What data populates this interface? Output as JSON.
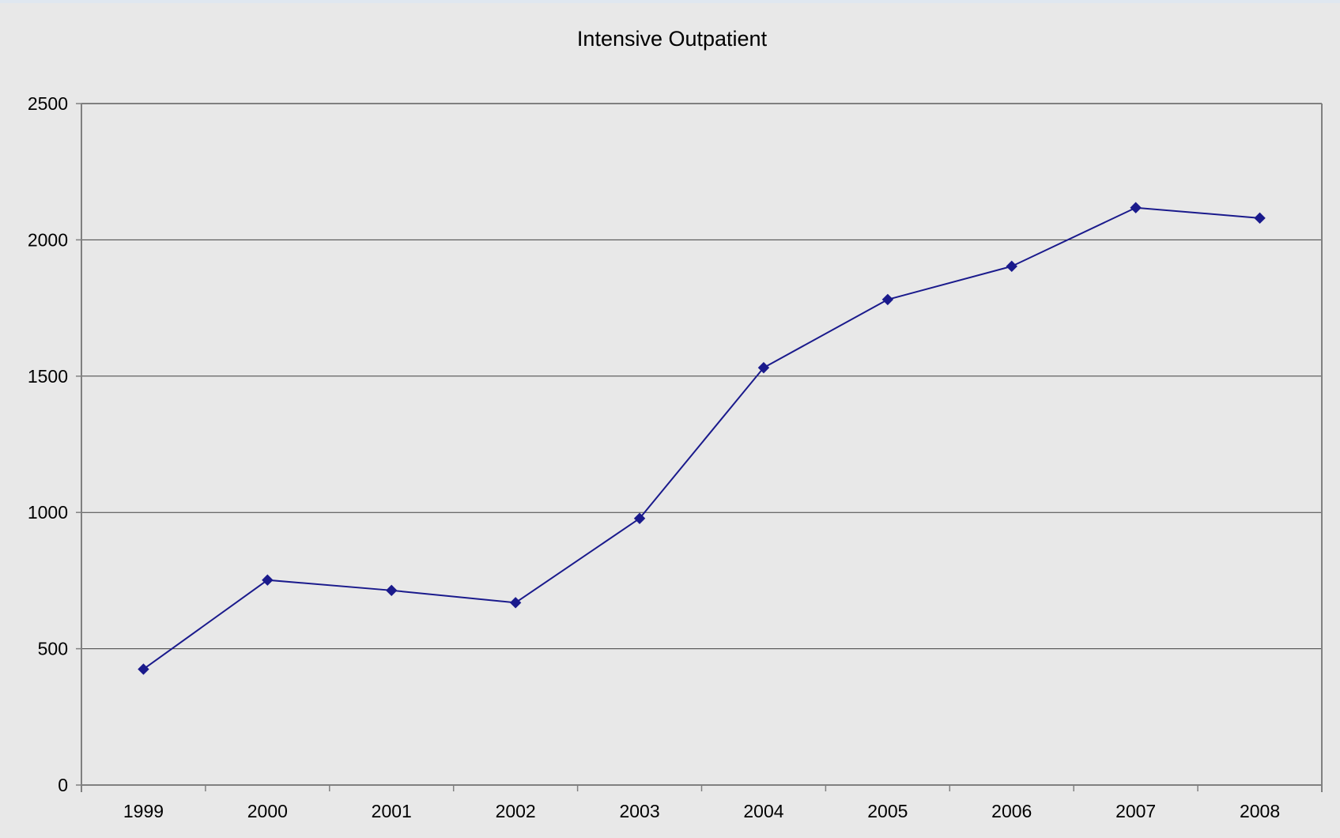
{
  "chart_data": {
    "type": "line",
    "title": "Intensive Outpatient",
    "xlabel": "",
    "ylabel": "",
    "categories": [
      "1999",
      "2000",
      "2001",
      "2002",
      "2003",
      "2004",
      "2005",
      "2006",
      "2007",
      "2008"
    ],
    "series": [
      {
        "values": [
          425,
          752,
          714,
          669,
          978,
          1531,
          1781,
          1903,
          2118,
          2080
        ],
        "color": "#1a1a8c",
        "marker": "diamond"
      }
    ],
    "ylim": [
      0,
      2500
    ],
    "yticks": [
      0,
      500,
      1000,
      1500,
      2000,
      2500
    ],
    "grid": "horizontal",
    "legend": "none",
    "colors": {
      "plot_background": "#e8e8e8",
      "gridline": "#404040",
      "axis": "#808080"
    }
  }
}
